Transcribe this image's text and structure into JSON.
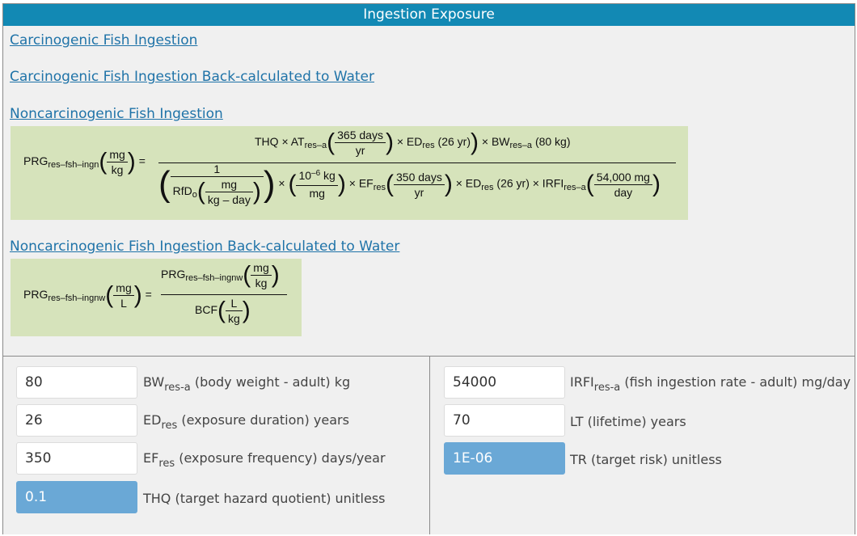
{
  "header": {
    "title": "Ingestion Exposure"
  },
  "links": {
    "carc_fish": "Carcinogenic Fish Ingestion",
    "carc_fish_water": "Carcinogenic Fish Ingestion Back-calculated to Water",
    "noncarc_fish": "Noncarcinogenic Fish Ingestion",
    "noncarc_fish_water": "Noncarcinogenic Fish Ingestion Back-calculated to Water"
  },
  "eq1": {
    "lhs": "PRG",
    "lhs_sub": "res–fsh–ingn",
    "lhs_unit_num": "mg",
    "lhs_unit_den": "kg",
    "eq": "=",
    "thq": "THQ ×",
    "at": "AT",
    "at_sub": "res–a",
    "days_num": "365 days",
    "days_den": "yr",
    "ed": "× ED",
    "ed_sub": "res",
    "ed_val": "(26 yr)",
    "bw": "× BW",
    "bw_sub": "res–a",
    "bw_val": "(80 kg)",
    "one": "1",
    "rfd": "RfD",
    "rfd_sub": "o",
    "rfd_unit_num": "mg",
    "rfd_unit_den": "kg – day",
    "times": "×",
    "conv_num_a": "10",
    "conv_num_exp": "–6",
    "conv_num_b": " kg",
    "conv_den": "mg",
    "ef": "× EF",
    "ef_sub": "res",
    "ef_num": "350 days",
    "ef_den": "yr",
    "ed2": "× ED",
    "ed2_sub": "res",
    "ed2_val": "(26 yr) × IRFI",
    "irfi_sub": "res–a",
    "ir_num": "54,000 mg",
    "ir_den": "day"
  },
  "eq2": {
    "lhs": "PRG",
    "lhs_sub": "res–fsh–ingnw",
    "lhs_unit_num": "mg",
    "lhs_unit_den": "L",
    "eq": "=",
    "num": "PRG",
    "num_sub": "res–fsh–ingnw",
    "num_unit_num": "mg",
    "num_unit_den": "kg",
    "den": "BCF",
    "den_unit_num": "L",
    "den_unit_den": "kg"
  },
  "fields": {
    "bw": {
      "value": "80",
      "label_a": "BW",
      "label_sub": "res-a",
      "label_b": " (body weight - adult) kg"
    },
    "ed": {
      "value": "26",
      "label_a": "ED",
      "label_sub": "res",
      "label_b": " (exposure duration) years"
    },
    "ef": {
      "value": "350",
      "label_a": "EF",
      "label_sub": "res",
      "label_b": " (exposure frequency) days/year"
    },
    "thq": {
      "value": "0.1",
      "label": "THQ (target hazard quotient) unitless"
    },
    "irfi": {
      "value": "54000",
      "label_a": "IRFI",
      "label_sub": "res-a",
      "label_b": " (fish ingestion rate - adult) mg/day"
    },
    "lt": {
      "value": "70",
      "label": "LT (lifetime) years"
    },
    "tr": {
      "value": "1E-06",
      "label": "TR (target risk) unitless"
    }
  },
  "colors": {
    "header": "#1289b4",
    "link": "#1f73a8",
    "equation_bg": "#d6e3bb",
    "highlight": "#6aa8d6"
  }
}
